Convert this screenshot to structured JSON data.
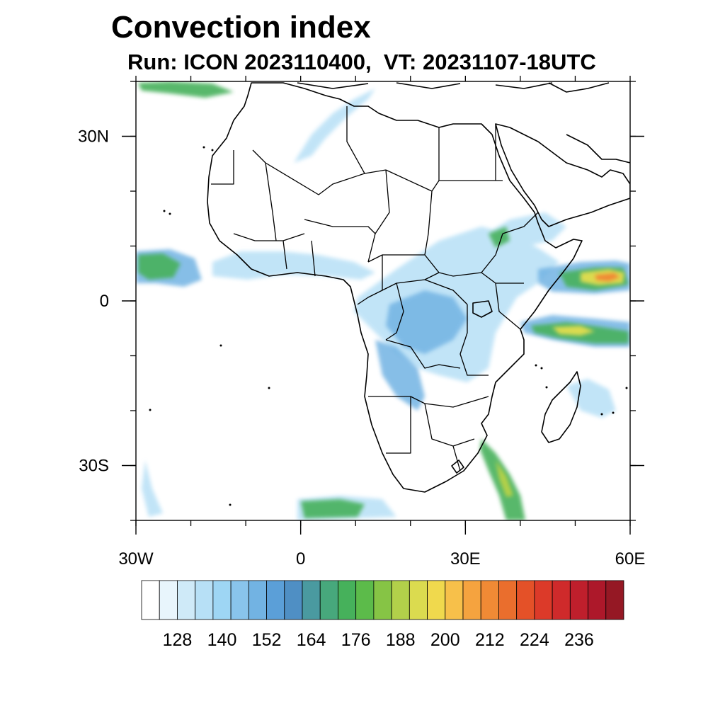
{
  "title": "Convection index",
  "subtitle": {
    "run": "Run: ICON 2023110400,",
    "vt": "VT: 20231107-18UTC"
  },
  "map": {
    "lon_range": [
      -30,
      60
    ],
    "lat_range": [
      -40,
      40
    ],
    "lon_ticks": [
      {
        "value": -30,
        "label": "30W"
      },
      {
        "value": 0,
        "label": "0"
      },
      {
        "value": 30,
        "label": "30E"
      },
      {
        "value": 60,
        "label": "60E"
      }
    ],
    "lat_ticks": [
      {
        "value": 30,
        "label": "30N"
      },
      {
        "value": 0,
        "label": "0"
      },
      {
        "value": -30,
        "label": "30S"
      }
    ],
    "minor_lon_step": 10,
    "minor_lat_step": 10
  },
  "colorbar": {
    "labels": [
      "128",
      "140",
      "152",
      "164",
      "176",
      "188",
      "200",
      "212",
      "224",
      "236"
    ],
    "colors": [
      "#ffffff",
      "#e8f5fc",
      "#cfeaf8",
      "#b7e0f6",
      "#9ed6f4",
      "#89c4ec",
      "#72b3e3",
      "#5b9fd8",
      "#4f8fc4",
      "#4a9aa0",
      "#47a87c",
      "#46b15b",
      "#5cbb4a",
      "#86c445",
      "#b2d04a",
      "#dbdb4f",
      "#f0d94d",
      "#f7c04a",
      "#f5a33f",
      "#f08a35",
      "#ea6e2d",
      "#e45128",
      "#dc3a29",
      "#cf2a2b",
      "#bf1f2c",
      "#ad182a",
      "#951824"
    ]
  }
}
